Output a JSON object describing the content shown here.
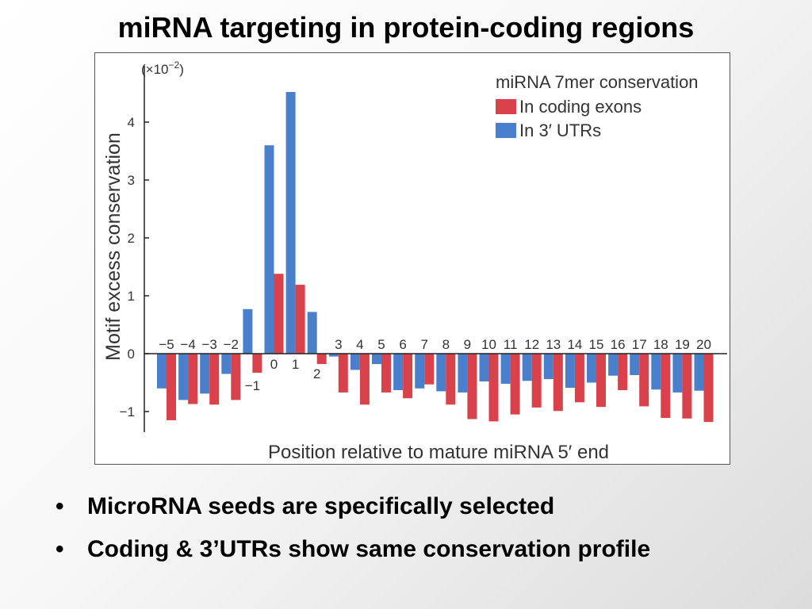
{
  "slide": {
    "title": "miRNA targeting in protein-coding regions",
    "bullets": [
      "MicroRNA seeds are specifically selected",
      "Coding & 3’UTRs show same conservation profile"
    ],
    "bullet_symbol": "•"
  },
  "chart_data": {
    "type": "bar",
    "title": "",
    "xlabel": "Position relative to mature miRNA 5′ end",
    "ylabel": "Motif excess conservation",
    "y_scale_label_base": "(×10",
    "y_scale_label_exp": "−2",
    "y_scale_label_end": ")",
    "ylim": [
      -1.25,
      4.95
    ],
    "yticks": [
      "−1",
      "0",
      "1",
      "2",
      "3",
      "4"
    ],
    "ytick_values": [
      -1,
      0,
      1,
      2,
      3,
      4
    ],
    "grid": false,
    "legend": {
      "title": "miRNA 7mer conservation",
      "placement": "top-right"
    },
    "categories": [
      "−5",
      "−4",
      "−3",
      "−2",
      "−1",
      "0",
      "1",
      "2",
      "3",
      "4",
      "5",
      "6",
      "7",
      "8",
      "9",
      "10",
      "11",
      "12",
      "13",
      "14",
      "15",
      "16",
      "17",
      "18",
      "19",
      "20"
    ],
    "category_values": [
      -5,
      -4,
      -3,
      -2,
      -1,
      0,
      1,
      2,
      3,
      4,
      5,
      6,
      7,
      8,
      9,
      10,
      11,
      12,
      13,
      14,
      15,
      16,
      17,
      18,
      19,
      20
    ],
    "series": [
      {
        "name": "In coding exons",
        "color": "#d9414b",
        "values": [
          -1.15,
          -0.87,
          -0.88,
          -0.8,
          -0.33,
          1.38,
          1.19,
          -0.18,
          -0.67,
          -0.88,
          -0.67,
          -0.77,
          -0.53,
          -0.88,
          -1.13,
          -1.17,
          -1.05,
          -0.93,
          -0.99,
          -0.84,
          -0.92,
          -0.63,
          -0.91,
          -1.11,
          -1.12,
          -1.18
        ]
      },
      {
        "name": "In 3′ UTRs",
        "color": "#4a7fcc",
        "values": [
          -0.6,
          -0.8,
          -0.69,
          -0.35,
          0.77,
          3.6,
          4.52,
          0.72,
          -0.05,
          -0.28,
          -0.18,
          -0.63,
          -0.6,
          -0.65,
          -0.67,
          -0.48,
          -0.52,
          -0.47,
          -0.44,
          -0.59,
          -0.5,
          -0.38,
          -0.37,
          -0.62,
          -0.67,
          -0.64
        ]
      }
    ]
  }
}
